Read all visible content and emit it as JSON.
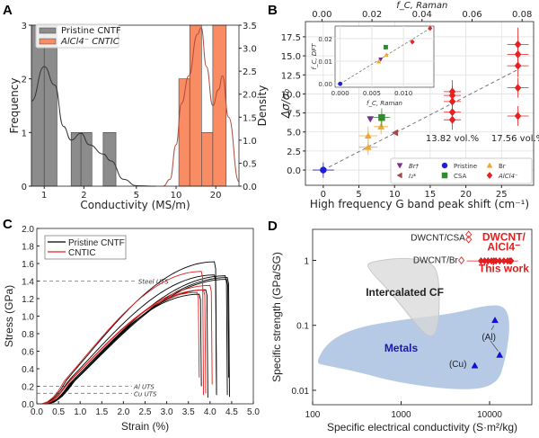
{
  "panels": {
    "a": "A",
    "b": "B",
    "c": "C",
    "d": "D"
  },
  "chart_data": [
    {
      "id": "A",
      "type": "bar",
      "subtype": "histogram-with-kde",
      "xlabel": "Conductivity (MS/m)",
      "ylabel": "Frequency",
      "y2label": "Density",
      "xscale": "log",
      "xlim": [
        0.8,
        30
      ],
      "ylim": [
        0,
        3
      ],
      "y2lim": [
        0,
        3.5
      ],
      "xticks": [
        1,
        2,
        5,
        10,
        20
      ],
      "yticks": [
        0,
        1,
        2,
        3
      ],
      "y2ticks": [
        "0.0",
        "0.5",
        "1.0",
        "1.5",
        "2.0",
        "2.5",
        "3.0",
        "3.5"
      ],
      "legend": {
        "placement": "top-left",
        "entries": [
          {
            "name": "Pristine CNTF",
            "color": "#8c8c8c"
          },
          {
            "name": "AlCl4⁻ CNTIC",
            "color": "#fa8c64"
          }
        ]
      },
      "series": [
        {
          "name": "Pristine CNTF",
          "color": "#8c8c8c",
          "bins": [
            [
              0.8,
              1.0,
              3
            ],
            [
              1.0,
              1.25,
              3
            ],
            [
              1.6,
              1.9,
              1
            ],
            [
              1.9,
              2.3,
              1
            ],
            [
              2.8,
              3.5,
              1
            ]
          ]
        },
        {
          "name": "AlCl4⁻ CNTIC",
          "color": "#fa8c64",
          "bins": [
            [
              10.5,
              12.7,
              2
            ],
            [
              12.7,
              15.6,
              3
            ],
            [
              15.6,
              19.0,
              1
            ],
            [
              19.0,
              24.0,
              3
            ]
          ]
        }
      ],
      "kde": [
        {
          "name": "Pristine CNTF",
          "color": "#333333",
          "points": [
            [
              0.8,
              1.85
            ],
            [
              1.0,
              2.6
            ],
            [
              1.2,
              2.2
            ],
            [
              1.4,
              1.3
            ],
            [
              1.6,
              1.0
            ],
            [
              1.9,
              1.15
            ],
            [
              2.2,
              0.9
            ],
            [
              2.8,
              0.7
            ],
            [
              3.2,
              0.55
            ],
            [
              4,
              0.15
            ],
            [
              5,
              0.01
            ],
            [
              7,
              0
            ]
          ]
        },
        {
          "name": "AlCl4⁻ CNTIC",
          "color": "#b04a3a",
          "points": [
            [
              8,
              0
            ],
            [
              9,
              0.15
            ],
            [
              10,
              0.9
            ],
            [
              11,
              1.8
            ],
            [
              12.5,
              2.4
            ],
            [
              14.5,
              3.3
            ],
            [
              15.5,
              3.45
            ],
            [
              17,
              2.6
            ],
            [
              19,
              1.75
            ],
            [
              21,
              2.1
            ],
            [
              22.5,
              2.4
            ],
            [
              25,
              1.5
            ],
            [
              30,
              0.1
            ]
          ]
        }
      ]
    },
    {
      "id": "B",
      "type": "scatter",
      "xlabel": "High frequency G band peak shift (cm⁻¹)",
      "ylabel": "Δσ/σ₀",
      "x2label": "f_C, Raman",
      "xlim": [
        -2.5,
        29.5
      ],
      "ylim": [
        -2,
        19.5
      ],
      "x2lim": [
        -0.0066,
        0.0846
      ],
      "xticks": [
        0,
        5,
        10,
        15,
        20,
        25
      ],
      "yticks": [
        "0.0",
        "2.5",
        "5.0",
        "7.5",
        "10.0",
        "12.5",
        "15.0",
        "17.5"
      ],
      "x2ticks": [
        "0.00",
        "0.02",
        "0.04",
        "0.06",
        "0.08"
      ],
      "fit_line": [
        [
          0,
          0
        ],
        [
          27.3,
          13.2
        ]
      ],
      "annotations": [
        "13.82 vol.%",
        "17.56 vol.%"
      ],
      "legend": {
        "placement": "bottom-right",
        "entries": [
          {
            "name": "Br†",
            "marker": "triangle-down",
            "color": "#7b2d8e"
          },
          {
            "name": "I₂*",
            "marker": "triangle-left",
            "color": "#a04a4a"
          },
          {
            "name": "Pristine",
            "marker": "circle",
            "color": "#1f1fd0"
          },
          {
            "name": "CSA",
            "marker": "square",
            "color": "#2e8b2e"
          },
          {
            "name": "Br",
            "marker": "triangle-up",
            "color": "#f0a830"
          },
          {
            "name": "AlCl4⁻",
            "marker": "diamond",
            "color": "#e82020"
          }
        ]
      },
      "series": [
        {
          "name": "Pristine",
          "color": "#1f1fd0",
          "marker": "circle",
          "points": [
            [
              0,
              0,
              1.5,
              1.0
            ]
          ]
        },
        {
          "name": "Br",
          "color": "#f0a830",
          "marker": "triangle-up",
          "points": [
            [
              6.3,
              3.0,
              1.3,
              1.0
            ],
            [
              6.3,
              4.5,
              1.3,
              1.2
            ],
            [
              8.1,
              5.7,
              1.0,
              1.0
            ]
          ]
        },
        {
          "name": "Br†",
          "color": "#7b2d8e",
          "marker": "triangle-down",
          "points": [
            [
              6.6,
              6.7,
              0,
              0
            ]
          ]
        },
        {
          "name": "CSA",
          "color": "#2e8b2e",
          "marker": "square",
          "points": [
            [
              8.2,
              6.9,
              1.2,
              1.2
            ]
          ]
        },
        {
          "name": "I₂*",
          "color": "#a04a4a",
          "marker": "triangle-left",
          "points": [
            [
              10.1,
              4.9,
              0,
              0
            ]
          ]
        },
        {
          "name": "AlCl4⁻",
          "color": "#e82020",
          "marker": "diamond",
          "points": [
            [
              18.1,
              6.6,
              1.2,
              1.3
            ],
            [
              18.1,
              7.6,
              1.2,
              1.3
            ],
            [
              18.1,
              9.0,
              1.2,
              1.3
            ],
            [
              18.1,
              9.8,
              1.2,
              1.3
            ],
            [
              18.1,
              10.3,
              1.2,
              1.5
            ],
            [
              27.3,
              7.1,
              1.5,
              1.3
            ],
            [
              27.3,
              10.8,
              1.5,
              1.3
            ],
            [
              27.3,
              13.7,
              1.5,
              1.5
            ],
            [
              27.3,
              15.2,
              1.5,
              1.5
            ],
            [
              27.3,
              16.5,
              1.5,
              2.2
            ]
          ]
        }
      ],
      "inset": {
        "xlabel": "f_C, Raman",
        "ylabel": "f_C, DFT",
        "xlim": [
          -0.0008,
          0.0148
        ],
        "ylim": [
          -0.0015,
          0.0255
        ],
        "xticks": [
          "0.000",
          "0.005",
          "0.010"
        ],
        "yticks": [
          "0.00",
          "0.01",
          "0.02"
        ],
        "fit_line": [
          [
            0,
            0
          ],
          [
            0.0142,
            0.0245
          ]
        ],
        "points": [
          {
            "x": 0.0,
            "y": 0.0,
            "color": "#1f1fd0",
            "marker": "circle"
          },
          {
            "x": 0.0061,
            "y": 0.0098,
            "color": "#f0a830",
            "marker": "triangle-up"
          },
          {
            "x": 0.0064,
            "y": 0.0108,
            "color": "#7b2d8e",
            "marker": "triangle-down"
          },
          {
            "x": 0.0073,
            "y": 0.0128,
            "color": "#f0a830",
            "marker": "triangle-up"
          },
          {
            "x": 0.0072,
            "y": 0.0162,
            "color": "#2e8b2e",
            "marker": "square"
          },
          {
            "x": 0.0114,
            "y": 0.0185,
            "color": "#e82020",
            "marker": "diamond"
          },
          {
            "x": 0.0142,
            "y": 0.0245,
            "color": "#e82020",
            "marker": "diamond"
          }
        ]
      }
    },
    {
      "id": "C",
      "type": "line",
      "xlabel": "Strain (%)",
      "ylabel": "Stress (GPa)",
      "xlim": [
        0,
        5
      ],
      "ylim": [
        0,
        2
      ],
      "xticks": [
        "0.0",
        "0.5",
        "1.0",
        "1.5",
        "2.0",
        "2.5",
        "3.0",
        "3.5",
        "4.0",
        "4.5",
        "5.0"
      ],
      "yticks": [
        "0.0",
        "0.2",
        "0.4",
        "0.6",
        "0.8",
        "1.0",
        "1.2",
        "1.4",
        "1.6",
        "1.8",
        "2.0"
      ],
      "legend": {
        "placement": "top-left",
        "entries": [
          {
            "name": "Pristine CNTF",
            "color": "#000000"
          },
          {
            "name": "CNTIC",
            "color": "#e02020"
          }
        ]
      },
      "reference_lines": [
        {
          "label": "Steel UTS",
          "y": 1.4
        },
        {
          "label": "Al UTS",
          "y": 0.2
        },
        {
          "label": "Cu UTS",
          "y": 0.12
        }
      ],
      "series": [
        {
          "name": "Pristine CNTF",
          "color": "#000000",
          "curves": [
            {
              "start": 0.25,
              "end": 4.1,
              "uts": 1.62,
              "drop": 0.1
            },
            {
              "start": 0.3,
              "end": 4.1,
              "uts": 1.47,
              "drop": 0.12
            },
            {
              "start": 0.45,
              "end": 4.35,
              "uts": 1.46,
              "drop": 0.1
            },
            {
              "start": 0.5,
              "end": 4.4,
              "uts": 1.44,
              "drop": 0.08
            },
            {
              "start": 0.55,
              "end": 4.38,
              "uts": 1.42,
              "drop": 0.3
            },
            {
              "start": 0.5,
              "end": 3.75,
              "uts": 1.25,
              "drop": 0.2
            },
            {
              "start": 0.6,
              "end": 3.9,
              "uts": 1.3,
              "drop": 0.07
            }
          ]
        },
        {
          "name": "CNTIC",
          "color": "#e02020",
          "curves": [
            {
              "start": 0.2,
              "end": 3.8,
              "uts": 1.51,
              "drop": 0.1
            },
            {
              "start": 0.3,
              "end": 4.0,
              "uts": 1.35,
              "drop": 0.22
            },
            {
              "start": 0.35,
              "end": 3.85,
              "uts": 1.3,
              "drop": 0.12
            },
            {
              "start": 0.4,
              "end": 3.7,
              "uts": 1.27,
              "drop": 0.3
            }
          ]
        }
      ]
    },
    {
      "id": "D",
      "type": "scatter",
      "subtype": "ashby-plot",
      "xlabel": "Specific electrical conductivity (S·m²/kg)",
      "ylabel": "Specific strength (GPa/SG)",
      "xscale": "log",
      "yscale": "log",
      "xlim": [
        100,
        30000
      ],
      "ylim": [
        0.006,
        3
      ],
      "xticks": [
        "100",
        "1000",
        "10000"
      ],
      "yticks": [
        "0.01",
        "0.1",
        "1"
      ],
      "regions": [
        {
          "label": "Intercalated CF",
          "color": "#d8d8d8",
          "polygon": [
            [
              450,
              0.95
            ],
            [
              1000,
              1.1
            ],
            [
              1900,
              1.0
            ],
            [
              2700,
              0.7
            ],
            [
              2700,
              0.1
            ],
            [
              2200,
              0.06
            ],
            [
              1500,
              0.1
            ],
            [
              800,
              0.3
            ],
            [
              400,
              0.8
            ]
          ]
        },
        {
          "label": "Metals",
          "color": "#a9c0e0",
          "polygon": [
            [
              110,
              0.027
            ],
            [
              150,
              0.055
            ],
            [
              300,
              0.09
            ],
            [
              1000,
              0.12
            ],
            [
              4000,
              0.15
            ],
            [
              9000,
              0.2
            ],
            [
              15000,
              0.2
            ],
            [
              17000,
              0.1
            ],
            [
              15000,
              0.03
            ],
            [
              12000,
              0.012
            ],
            [
              5000,
              0.01
            ],
            [
              1000,
              0.013
            ],
            [
              300,
              0.02
            ],
            [
              130,
              0.025
            ]
          ]
        }
      ],
      "points": [
        {
          "label": "DWCNT/CSA",
          "x": 5800,
          "y": 2.1,
          "marker": "open-diamond",
          "color": "#e04040"
        },
        {
          "label": "DWCNT/CSA",
          "x": 5800,
          "y": 2.5,
          "marker": "open-diamond",
          "color": "#e04040"
        },
        {
          "label": "DWCNT/Br",
          "x": 4800,
          "y": 1.0,
          "marker": "open-diamond",
          "color": "#e04040"
        },
        {
          "label": "(Al)",
          "x": 11500,
          "y": 0.12,
          "marker": "triangle-up",
          "color": "#1010d0"
        },
        {
          "label": "(Al)",
          "x": 13000,
          "y": 0.035,
          "marker": "triangle-up",
          "color": "#1010d0"
        },
        {
          "label": "(Cu)",
          "x": 6800,
          "y": 0.024,
          "marker": "triangle-up",
          "color": "#1010d0"
        }
      ],
      "this_work": {
        "label_lines": [
          "DWCNT/",
          "AlCl4⁻",
          "This work"
        ],
        "color": "#e02020",
        "y": 0.98,
        "x_values": [
          8000,
          8800,
          9600,
          10500,
          11200,
          11800,
          13000,
          14500,
          16000,
          17000,
          17500
        ],
        "x_err": [
          5500,
          21000
        ]
      },
      "annotations": [
        "Intercalated CF",
        "Metals",
        "(Al)",
        "(Cu)",
        "DWCNT/CSA",
        "DWCNT/Br"
      ]
    }
  ]
}
